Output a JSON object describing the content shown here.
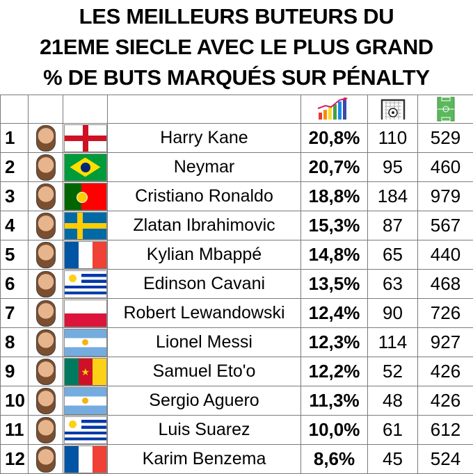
{
  "title": {
    "line1": "LES MEILLEURS BUTEURS DU",
    "line2": "21EME SIECLE AVEC LE PLUS GRAND",
    "line3": "% DE BUTS MARQUÉS SUR PÉNALTY"
  },
  "header_icons": [
    "chart-icon",
    "goal-icon",
    "pitch-icon"
  ],
  "rows": [
    {
      "rank": "1",
      "name": "Harry Kane",
      "pct": "20,8%",
      "goals": "110",
      "matches": "529",
      "flag": "england"
    },
    {
      "rank": "2",
      "name": "Neymar",
      "pct": "20,7%",
      "goals": "95",
      "matches": "460",
      "flag": "brazil"
    },
    {
      "rank": "3",
      "name": "Cristiano Ronaldo",
      "pct": "18,8%",
      "goals": "184",
      "matches": "979",
      "flag": "portugal"
    },
    {
      "rank": "4",
      "name": "Zlatan Ibrahimovic",
      "pct": "15,3%",
      "goals": "87",
      "matches": "567",
      "flag": "sweden"
    },
    {
      "rank": "5",
      "name": "Kylian Mbappé",
      "pct": "14,8%",
      "goals": "65",
      "matches": "440",
      "flag": "france"
    },
    {
      "rank": "6",
      "name": "Edinson Cavani",
      "pct": "13,5%",
      "goals": "63",
      "matches": "468",
      "flag": "uruguay"
    },
    {
      "rank": "7",
      "name": "Robert Lewandowski",
      "pct": "12,4%",
      "goals": "90",
      "matches": "726",
      "flag": "poland"
    },
    {
      "rank": "8",
      "name": "Lionel Messi",
      "pct": "12,3%",
      "goals": "114",
      "matches": "927",
      "flag": "argentina"
    },
    {
      "rank": "9",
      "name": "Samuel Eto'o",
      "pct": "12,2%",
      "goals": "52",
      "matches": "426",
      "flag": "cameroon"
    },
    {
      "rank": "10",
      "name": "Sergio Aguero",
      "pct": "11,3%",
      "goals": "48",
      "matches": "426",
      "flag": "argentina"
    },
    {
      "rank": "11",
      "name": "Luis Suarez",
      "pct": "10,0%",
      "goals": "61",
      "matches": "612",
      "flag": "uruguay"
    },
    {
      "rank": "12",
      "name": "Karim Benzema",
      "pct": "8,6%",
      "goals": "45",
      "matches": "524",
      "flag": "france"
    }
  ]
}
